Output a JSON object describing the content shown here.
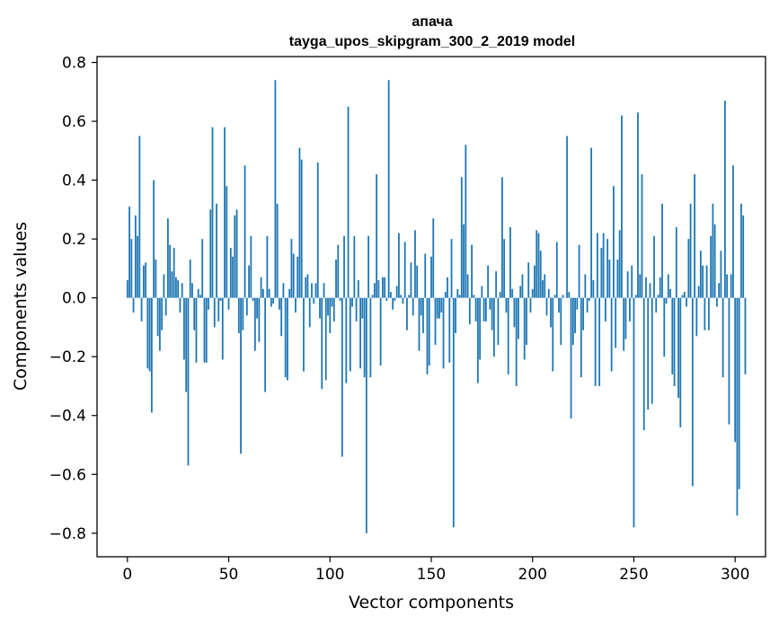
{
  "chart_data": {
    "type": "bar",
    "title_line1": "апача",
    "title_line2": "tayga_upos_skipgram_300_2_2019 model",
    "xlabel": "Vector components",
    "ylabel": "Components values",
    "xlim": [
      -15,
      315
    ],
    "ylim": [
      -0.88,
      0.82
    ],
    "xticks": [
      0,
      50,
      100,
      150,
      200,
      250,
      300
    ],
    "xtick_labels": [
      "0",
      "50",
      "100",
      "150",
      "200",
      "250",
      "300"
    ],
    "yticks": [
      0.8,
      0.6,
      0.4,
      0.2,
      0.0,
      -0.2,
      -0.4,
      -0.6,
      -0.8
    ],
    "ytick_labels": [
      "0.8",
      "0.6",
      "0.4",
      "0.2",
      "0.0",
      "−0.2",
      "−0.4",
      "−0.6",
      "−0.8"
    ],
    "bar_color": "#1f77b4",
    "values": [
      0.06,
      0.31,
      0.2,
      -0.05,
      0.28,
      0.21,
      0.55,
      -0.08,
      0.11,
      0.12,
      -0.24,
      -0.25,
      -0.39,
      0.4,
      0.13,
      -0.13,
      -0.18,
      -0.11,
      0.08,
      -0.06,
      0.27,
      0.18,
      0.09,
      0.17,
      0.07,
      0.06,
      -0.05,
      0.05,
      -0.21,
      -0.32,
      -0.57,
      0.13,
      0.05,
      -0.11,
      -0.22,
      0.03,
      0.01,
      0.2,
      -0.22,
      -0.22,
      -0.04,
      0.3,
      0.58,
      -0.1,
      0.32,
      -0.08,
      -0.01,
      -0.21,
      0.58,
      0.38,
      -0.04,
      0.17,
      0.14,
      0.28,
      0.3,
      -0.12,
      -0.53,
      -0.11,
      0.45,
      -0.06,
      0.11,
      0.21,
      -0.01,
      -0.18,
      -0.07,
      -0.15,
      0.07,
      0.03,
      -0.32,
      0.21,
      0.03,
      -0.03,
      -0.02,
      0.74,
      0.32,
      -0.04,
      -0.13,
      0.05,
      -0.27,
      -0.28,
      0.03,
      0.2,
      0.15,
      -0.05,
      0.14,
      0.51,
      0.47,
      -0.25,
      0.07,
      0.08,
      -0.1,
      0.05,
      -0.02,
      0.05,
      0.46,
      -0.07,
      -0.31,
      0.05,
      -0.28,
      -0.06,
      -0.12,
      -0.03,
      -0.08,
      0.13,
      0.18,
      -0.01,
      -0.54,
      0.21,
      -0.29,
      0.65,
      -0.25,
      -0.03,
      0.21,
      -0.08,
      0.06,
      -0.24,
      -0.07,
      -0.27,
      -0.8,
      0.21,
      -0.27,
      0.01,
      0.05,
      0.42,
      0.06,
      -0.23,
      0.07,
      0.07,
      -0.01,
      0.74,
      0.02,
      -0.04,
      -0.01,
      0.04,
      0.22,
      0.01,
      -0.02,
      0.19,
      -0.11,
      0.01,
      0.12,
      -0.06,
      0.23,
      0.11,
      -0.18,
      -0.06,
      -0.12,
      0.15,
      -0.26,
      -0.23,
      0.14,
      0.27,
      -0.16,
      -0.07,
      -0.07,
      -0.05,
      -0.24,
      0.02,
      0.07,
      -0.22,
      0.2,
      -0.78,
      -0.12,
      0.03,
      0.01,
      0.41,
      0.25,
      0.52,
      0.08,
      -0.09,
      0.18,
      0.01,
      -0.08,
      -0.29,
      -0.21,
      0.04,
      -0.08,
      -0.08,
      0.11,
      -0.04,
      -0.11,
      -0.2,
      0.09,
      -0.16,
      0.02,
      0.41,
      0.2,
      -0.05,
      -0.26,
      0.24,
      0.03,
      -0.1,
      -0.3,
      -0.14,
      0.04,
      0.08,
      -0.21,
      -0.16,
      0.12,
      -0.05,
      0.03,
      0.11,
      0.23,
      0.22,
      0.16,
      0.06,
      0.08,
      -0.06,
      0.03,
      -0.1,
      -0.25,
      0.01,
      0.19,
      -0.05,
      -0.16,
      0.01,
      0.0,
      0.55,
      0.02,
      -0.41,
      -0.16,
      -0.12,
      -0.04,
      0.18,
      -0.27,
      -0.11,
      0.08,
      -0.05,
      -0.01,
      0.51,
      0.06,
      -0.3,
      0.22,
      -0.3,
      0.17,
      0.22,
      -0.08,
      0.2,
      0.13,
      -0.25,
      0.38,
      -0.17,
      0.13,
      0.23,
      0.62,
      -0.18,
      -0.14,
      0.09,
      -0.08,
      0.11,
      -0.78,
      0.01,
      0.63,
      0.08,
      0.42,
      -0.45,
      0.07,
      -0.38,
      0.05,
      -0.36,
      0.21,
      -0.05,
      0.01,
      0.07,
      0.32,
      -0.2,
      -0.02,
      0.08,
      0.03,
      -0.26,
      -0.3,
      0.24,
      -0.34,
      -0.44,
      0.01,
      0.02,
      -0.03,
      0.2,
      0.32,
      -0.64,
      0.42,
      -0.13,
      0.04,
      0.16,
      0.11,
      -0.11,
      0.11,
      -0.11,
      0.21,
      0.32,
      0.25,
      -0.03,
      0.05,
      0.16,
      -0.27,
      0.67,
      0.08,
      -0.43,
      0.08,
      0.45,
      -0.49,
      -0.74,
      -0.65,
      0.32,
      0.28,
      -0.26
    ]
  }
}
